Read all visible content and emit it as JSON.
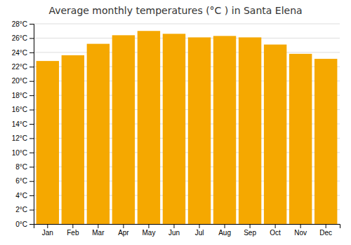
{
  "chart_data": {
    "type": "bar",
    "title": "Average monthly temperatures (°C ) in Santa Elena",
    "categories": [
      "Jan",
      "Feb",
      "Mar",
      "Apr",
      "May",
      "Jun",
      "Jul",
      "Aug",
      "Sep",
      "Oct",
      "Nov",
      "Dec"
    ],
    "values": [
      22.8,
      23.6,
      25.2,
      26.4,
      27.0,
      26.6,
      26.1,
      26.3,
      26.1,
      25.1,
      23.8,
      23.1
    ],
    "color": "#F5A800",
    "ylim": [
      0,
      28
    ],
    "yticks": [
      {
        "value": 0,
        "label": "0°C"
      },
      {
        "value": 2,
        "label": "2°C"
      },
      {
        "value": 4,
        "label": "4°C"
      },
      {
        "value": 6,
        "label": "6°C"
      },
      {
        "value": 8,
        "label": "8°C"
      },
      {
        "value": 10,
        "label": "10°C"
      },
      {
        "value": 12,
        "label": "12°C"
      },
      {
        "value": 14,
        "label": "14°C"
      },
      {
        "value": 16,
        "label": "16°C"
      },
      {
        "value": 18,
        "label": "18°C"
      },
      {
        "value": 20,
        "label": "20°C"
      },
      {
        "value": 22,
        "label": "22°C"
      },
      {
        "value": 24,
        "label": "24°C"
      },
      {
        "value": 26,
        "label": "26°C"
      },
      {
        "value": 28,
        "label": "28°C"
      }
    ],
    "grid": true
  }
}
